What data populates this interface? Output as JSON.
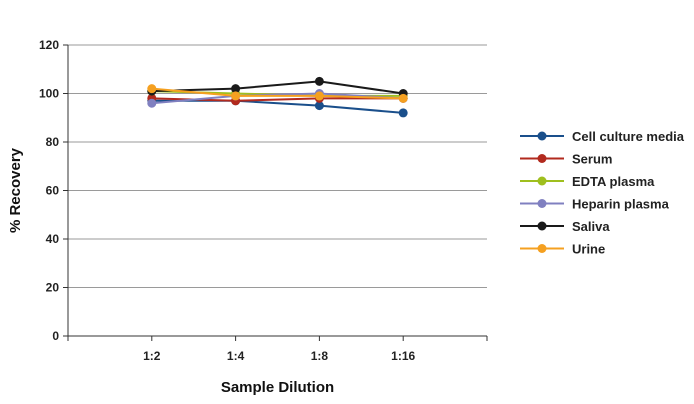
{
  "chart_data": {
    "type": "line",
    "title": "",
    "xlabel": "Sample Dilution",
    "ylabel": "% Recovery",
    "categories": [
      "1:2",
      "1:4",
      "1:8",
      "1:16"
    ],
    "ylim": [
      0,
      120
    ],
    "yticks": [
      0,
      20,
      40,
      60,
      80,
      100,
      120
    ],
    "grid": "horizontal",
    "legend": "right",
    "series": [
      {
        "name": "Cell culture media",
        "color": "#1a4f8b",
        "values": [
          97,
          97,
          95,
          92
        ]
      },
      {
        "name": "Serum",
        "color": "#b22a1e",
        "values": [
          98,
          97,
          98,
          98
        ]
      },
      {
        "name": "EDTA plasma",
        "color": "#9fbf1e",
        "values": [
          101,
          100,
          99,
          99
        ]
      },
      {
        "name": "Heparin plasma",
        "color": "#8080c0",
        "values": [
          96,
          99,
          100,
          98
        ]
      },
      {
        "name": "Saliva",
        "color": "#1a1a1a",
        "values": [
          101,
          102,
          105,
          100
        ]
      },
      {
        "name": "Urine",
        "color": "#f5a020",
        "values": [
          102,
          99,
          99,
          98
        ]
      }
    ]
  }
}
